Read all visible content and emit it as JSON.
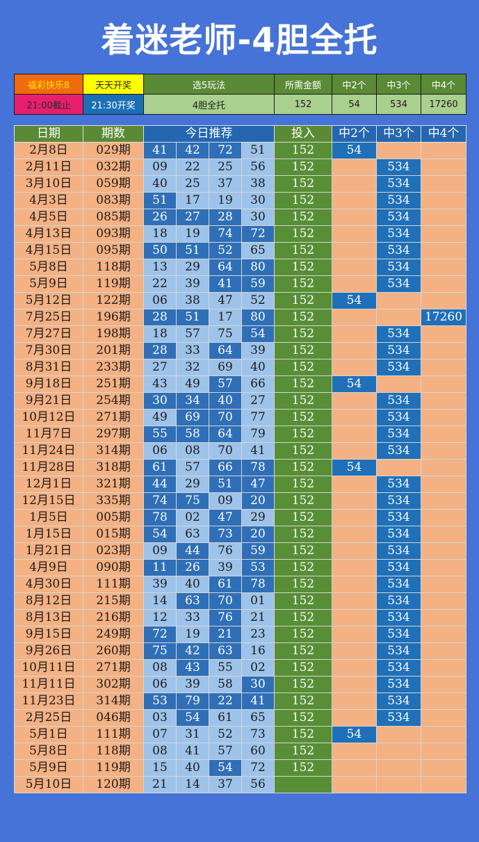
{
  "title": "着迷老师-4胆全托",
  "info": {
    "row1": [
      "福彩快乐8",
      "天天开奖",
      "选5玩法",
      "所需金额",
      "中2个",
      "中3个",
      "中4个"
    ],
    "row2": [
      "21:00截止",
      "21:30开奖",
      "4胆全托",
      "152",
      "54",
      "534",
      "17260"
    ]
  },
  "table": {
    "headers": [
      "日期",
      "期数",
      "今日推荐",
      "投入",
      "中2个",
      "中3个",
      "中4个"
    ],
    "rows": [
      {
        "date": "2月8日",
        "issue": "029期",
        "nums": [
          "41",
          "42",
          "72",
          "51"
        ],
        "inv": "152",
        "win": [
          "54",
          "",
          ""
        ]
      },
      {
        "date": "2月11日",
        "issue": "032期",
        "nums": [
          "09",
          "22",
          "25",
          "56"
        ],
        "inv": "152",
        "win": [
          "",
          "534",
          ""
        ]
      },
      {
        "date": "3月10日",
        "issue": "059期",
        "nums": [
          "40",
          "25",
          "37",
          "38"
        ],
        "inv": "152",
        "win": [
          "",
          "534",
          ""
        ]
      },
      {
        "date": "4月3日",
        "issue": "083期",
        "nums": [
          "51",
          "17",
          "19",
          "30"
        ],
        "inv": "152",
        "win": [
          "",
          "534",
          ""
        ]
      },
      {
        "date": "4月5日",
        "issue": "085期",
        "nums": [
          "26",
          "27",
          "28",
          "30"
        ],
        "inv": "152",
        "win": [
          "",
          "534",
          ""
        ]
      },
      {
        "date": "4月13日",
        "issue": "093期",
        "nums": [
          "18",
          "19",
          "74",
          "72"
        ],
        "inv": "152",
        "win": [
          "",
          "534",
          ""
        ]
      },
      {
        "date": "4月15日",
        "issue": "095期",
        "nums": [
          "50",
          "51",
          "52",
          "65"
        ],
        "inv": "152",
        "win": [
          "",
          "534",
          ""
        ]
      },
      {
        "date": "5月8日",
        "issue": "118期",
        "nums": [
          "13",
          "29",
          "64",
          "80"
        ],
        "inv": "152",
        "win": [
          "",
          "534",
          ""
        ]
      },
      {
        "date": "5月9日",
        "issue": "119期",
        "nums": [
          "22",
          "39",
          "41",
          "59"
        ],
        "inv": "152",
        "win": [
          "",
          "534",
          ""
        ]
      },
      {
        "date": "5月12日",
        "issue": "122期",
        "nums": [
          "06",
          "38",
          "47",
          "52"
        ],
        "inv": "152",
        "win": [
          "54",
          "",
          ""
        ]
      },
      {
        "date": "7月25日",
        "issue": "196期",
        "nums": [
          "28",
          "51",
          "17",
          "80"
        ],
        "inv": "152",
        "win": [
          "",
          "",
          "17260"
        ]
      },
      {
        "date": "7月27日",
        "issue": "198期",
        "nums": [
          "18",
          "57",
          "75",
          "54"
        ],
        "inv": "152",
        "win": [
          "",
          "534",
          ""
        ]
      },
      {
        "date": "7月30日",
        "issue": "201期",
        "nums": [
          "28",
          "33",
          "64",
          "39"
        ],
        "inv": "152",
        "win": [
          "",
          "534",
          ""
        ]
      },
      {
        "date": "8月31日",
        "issue": "233期",
        "nums": [
          "27",
          "32",
          "69",
          "40"
        ],
        "inv": "152",
        "win": [
          "",
          "534",
          ""
        ]
      },
      {
        "date": "9月18日",
        "issue": "251期",
        "nums": [
          "43",
          "49",
          "57",
          "66"
        ],
        "inv": "152",
        "win": [
          "54",
          "",
          ""
        ]
      },
      {
        "date": "9月21日",
        "issue": "254期",
        "nums": [
          "30",
          "34",
          "40",
          "27"
        ],
        "inv": "152",
        "win": [
          "",
          "534",
          ""
        ]
      },
      {
        "date": "10月12日",
        "issue": "271期",
        "nums": [
          "49",
          "69",
          "70",
          "77"
        ],
        "inv": "152",
        "win": [
          "",
          "534",
          ""
        ]
      },
      {
        "date": "11月7日",
        "issue": "297期",
        "nums": [
          "55",
          "58",
          "64",
          "79"
        ],
        "inv": "152",
        "win": [
          "",
          "534",
          ""
        ]
      },
      {
        "date": "11月24日",
        "issue": "314期",
        "nums": [
          "06",
          "08",
          "70",
          "41"
        ],
        "inv": "152",
        "win": [
          "",
          "534",
          ""
        ]
      },
      {
        "date": "11月28日",
        "issue": "318期",
        "nums": [
          "61",
          "57",
          "66",
          "78"
        ],
        "inv": "152",
        "win": [
          "54",
          "",
          ""
        ]
      },
      {
        "date": "12月1日",
        "issue": "321期",
        "nums": [
          "44",
          "29",
          "51",
          "47"
        ],
        "inv": "152",
        "win": [
          "",
          "534",
          ""
        ]
      },
      {
        "date": "12月15日",
        "issue": "335期",
        "nums": [
          "74",
          "75",
          "09",
          "20"
        ],
        "inv": "152",
        "win": [
          "",
          "534",
          ""
        ]
      },
      {
        "date": "1月5日",
        "issue": "005期",
        "nums": [
          "78",
          "02",
          "47",
          "29"
        ],
        "inv": "152",
        "win": [
          "",
          "534",
          ""
        ]
      },
      {
        "date": "1月15日",
        "issue": "015期",
        "nums": [
          "54",
          "63",
          "73",
          "20"
        ],
        "inv": "152",
        "win": [
          "",
          "534",
          ""
        ]
      },
      {
        "date": "1月21日",
        "issue": "023期",
        "nums": [
          "09",
          "44",
          "76",
          "59"
        ],
        "inv": "152",
        "win": [
          "",
          "534",
          ""
        ]
      },
      {
        "date": "4月9日",
        "issue": "090期",
        "nums": [
          "11",
          "26",
          "39",
          "53"
        ],
        "inv": "152",
        "win": [
          "",
          "534",
          ""
        ]
      },
      {
        "date": "4月30日",
        "issue": "111期",
        "nums": [
          "39",
          "40",
          "61",
          "78"
        ],
        "inv": "152",
        "win": [
          "",
          "534",
          ""
        ]
      },
      {
        "date": "8月12日",
        "issue": "215期",
        "nums": [
          "14",
          "63",
          "70",
          "01"
        ],
        "inv": "152",
        "win": [
          "",
          "534",
          ""
        ]
      },
      {
        "date": "8月13日",
        "issue": "216期",
        "nums": [
          "12",
          "33",
          "76",
          "21"
        ],
        "inv": "152",
        "win": [
          "",
          "534",
          ""
        ]
      },
      {
        "date": "9月15日",
        "issue": "249期",
        "nums": [
          "72",
          "19",
          "21",
          "23"
        ],
        "inv": "152",
        "win": [
          "",
          "534",
          ""
        ]
      },
      {
        "date": "9月26日",
        "issue": "260期",
        "nums": [
          "75",
          "42",
          "63",
          "16"
        ],
        "inv": "152",
        "win": [
          "",
          "534",
          ""
        ]
      },
      {
        "date": "10月11日",
        "issue": "271期",
        "nums": [
          "08",
          "43",
          "55",
          "02"
        ],
        "inv": "152",
        "win": [
          "",
          "534",
          ""
        ]
      },
      {
        "date": "11月11日",
        "issue": "302期",
        "nums": [
          "06",
          "39",
          "58",
          "30"
        ],
        "inv": "152",
        "win": [
          "",
          "534",
          ""
        ]
      },
      {
        "date": "11月23日",
        "issue": "314期",
        "nums": [
          "53",
          "79",
          "22",
          "41"
        ],
        "inv": "152",
        "win": [
          "",
          "534",
          ""
        ]
      },
      {
        "date": "2月25日",
        "issue": "046期",
        "nums": [
          "03",
          "54",
          "61",
          "65"
        ],
        "inv": "152",
        "win": [
          "",
          "534",
          ""
        ]
      },
      {
        "date": "5月1日",
        "issue": "111期",
        "nums": [
          "07",
          "31",
          "52",
          "73"
        ],
        "inv": "152",
        "win": [
          "54",
          "",
          ""
        ]
      },
      {
        "date": "5月8日",
        "issue": "118期",
        "nums": [
          "08",
          "41",
          "57",
          "60"
        ],
        "inv": "152",
        "win": [
          "",
          "",
          ""
        ]
      },
      {
        "date": "5月9日",
        "issue": "119期",
        "nums": [
          "15",
          "40",
          "54",
          "72"
        ],
        "inv": "152",
        "win": [
          "",
          "",
          ""
        ]
      },
      {
        "date": "5月10日",
        "issue": "120期",
        "nums": [
          "21",
          "14",
          "37",
          "56"
        ],
        "inv": "",
        "win": [
          "",
          "",
          ""
        ]
      }
    ]
  }
}
